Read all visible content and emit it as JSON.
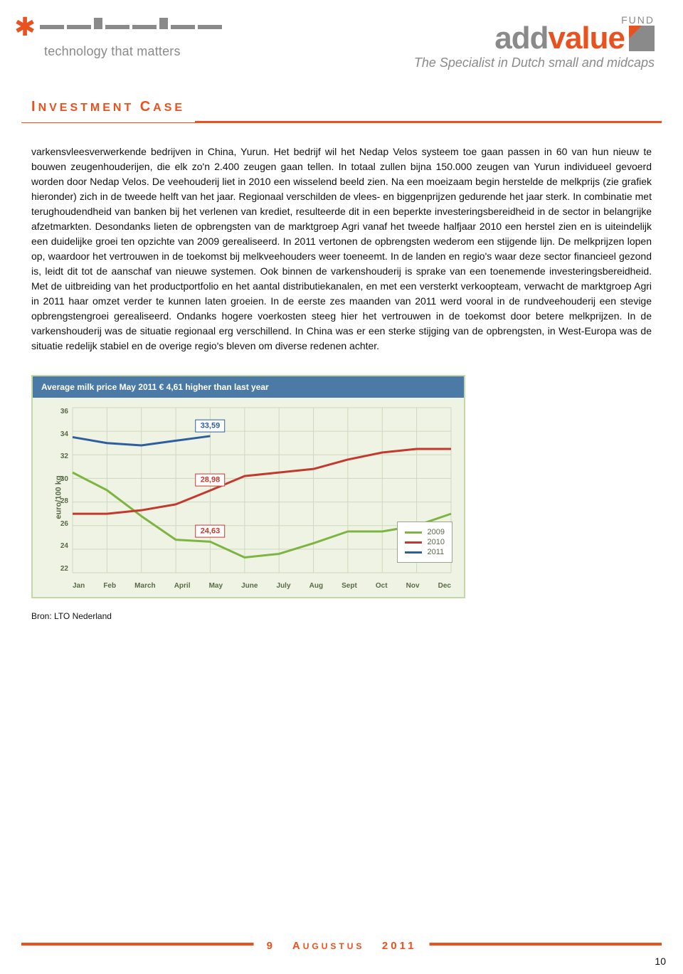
{
  "header": {
    "nedap_tagline": "technology that matters",
    "addvalue_fund": "FUND",
    "addvalue_grey": "add",
    "addvalue_orange": "value",
    "addvalue_tag": "The Specialist in Dutch small and midcaps"
  },
  "title": {
    "main_i": "I",
    "main_rest": "NVESTMENT ",
    "case_c": "C",
    "case_rest": "ASE"
  },
  "body": {
    "paragraph": "varkensvleesverwerkende bedrijven in China, Yurun. Het bedrijf wil het Nedap Velos systeem toe gaan passen in 60 van hun nieuw te bouwen zeugenhouderijen, die elk zo'n 2.400 zeugen gaan tellen. In totaal zullen bijna 150.000 zeugen van Yurun individueel gevoerd worden door Nedap Velos. De veehouderij liet in 2010 een wisselend beeld zien. Na een moeizaam begin herstelde de melkprijs (zie grafiek hieronder) zich in de tweede helft van het jaar. Regionaal verschilden de vlees- en biggenprijzen gedurende het jaar sterk. In combinatie met terughoudendheid van banken bij het verlenen van krediet, resulteerde dit in een beperkte investeringsbereidheid in de sector in belangrijke afzetmarkten. Desondanks lieten de opbrengsten van de marktgroep Agri vanaf het tweede halfjaar 2010 een herstel zien en is uiteindelijk een duidelijke groei ten opzichte van 2009 gerealiseerd. In 2011 vertonen de opbrengsten wederom een stijgende lijn. De melkprijzen lopen op, waardoor het vertrouwen in de toekomst bij melkveehouders weer toeneemt. In de landen en regio's waar deze sector financieel gezond is, leidt dit tot de aanschaf van nieuwe systemen. Ook binnen de varkenshouderij is sprake van een toenemende investeringsbereidheid. Met de uitbreiding van het productportfolio en het aantal distributiekanalen, en met een versterkt verkoopteam, verwacht de marktgroep Agri in 2011 haar omzet verder te kunnen laten groeien. In de eerste zes maanden van 2011 werd vooral in de rundveehouderij een stevige opbrengstengroei gerealiseerd. Ondanks hogere voerkosten steeg hier het vertrouwen in de toekomst door betere melkprijzen. In de varkenshouderij was de situatie regionaal erg verschillend. In China was er een sterke stijging van de opbrengsten, in West-Europa was de situatie redelijk stabiel en de overige regio's bleven om diverse redenen achter."
  },
  "chart": {
    "type": "line",
    "title": "Average milk price May 2011 € 4,61 higher than last year",
    "ylabel": "euro/100 kg",
    "ylim": [
      22,
      36
    ],
    "ytick_step": 2,
    "y_ticks": [
      "36",
      "34",
      "32",
      "30",
      "28",
      "26",
      "24",
      "22"
    ],
    "months": [
      "Jan",
      "Feb",
      "March",
      "April",
      "May",
      "June",
      "July",
      "Aug",
      "Sept",
      "Oct",
      "Nov",
      "Dec"
    ],
    "series": [
      {
        "name": "2009",
        "color": "#7eb542",
        "values": [
          30.5,
          29.0,
          26.8,
          24.8,
          24.63,
          23.3,
          23.6,
          24.5,
          25.5,
          25.5,
          26.0,
          27.0
        ]
      },
      {
        "name": "2010",
        "color": "#c23a2e",
        "values": [
          27.0,
          27.0,
          27.3,
          27.8,
          28.98,
          30.2,
          30.5,
          30.8,
          31.6,
          32.2,
          32.5,
          32.5
        ]
      },
      {
        "name": "2011",
        "color": "#2e5e9e",
        "values": [
          33.5,
          33.0,
          32.8,
          33.2,
          33.59,
          null,
          null,
          null,
          null,
          null,
          null,
          null
        ]
      }
    ],
    "callouts": [
      {
        "label": "33,59",
        "series": 2,
        "month_index": 4,
        "color": "#2e5e9e"
      },
      {
        "label": "28,98",
        "series": 1,
        "month_index": 4,
        "color": "#c23a2e"
      },
      {
        "label": "24,63",
        "series": 0,
        "month_index": 4,
        "color": "#c23a2e"
      }
    ],
    "background_color": "#eef3e4",
    "grid_color": "#cdd9bd",
    "line_width": 3,
    "source": "Bron: LTO Nederland"
  },
  "footer": {
    "day": "9",
    "month_a": "A",
    "month_rest": "UGUSTUS",
    "year": "2011",
    "page": "10"
  }
}
